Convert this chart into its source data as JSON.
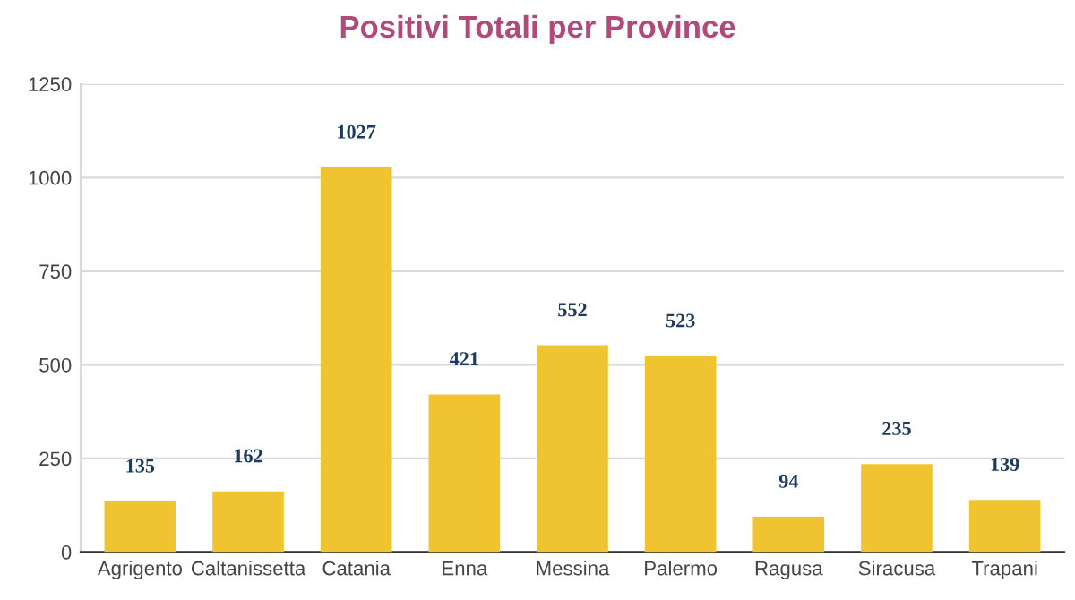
{
  "chart_data": {
    "type": "bar",
    "title": "Positivi Totali per Province",
    "categories": [
      "Agrigento",
      "Caltanissetta",
      "Catania",
      "Enna",
      "Messina",
      "Palermo",
      "Ragusa",
      "Siracusa",
      "Trapani"
    ],
    "values": [
      135,
      162,
      1027,
      421,
      552,
      523,
      94,
      235,
      139
    ],
    "color": "#f0c330",
    "ylim": [
      0,
      1250
    ],
    "yticks": [
      0,
      250,
      500,
      750,
      1000,
      1250
    ],
    "grid": "y",
    "data_labels": true,
    "legend": false
  }
}
